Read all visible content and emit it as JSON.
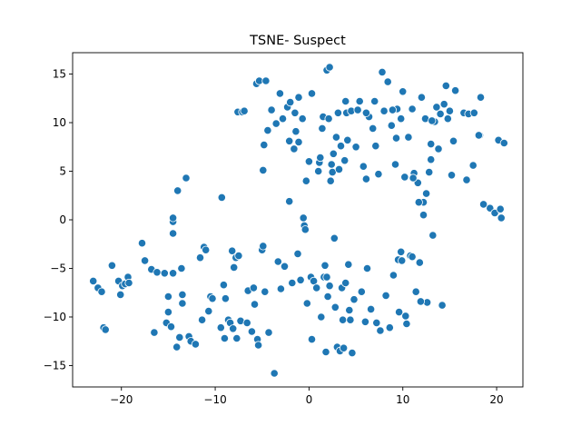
{
  "chart_data": {
    "type": "scatter",
    "title": "TSNE- Suspect",
    "xlabel": "",
    "ylabel": "",
    "xlim": [
      -25.2,
      22.8
    ],
    "ylim": [
      -17.2,
      17.2
    ],
    "xticks": [
      -20,
      -10,
      0,
      10,
      20
    ],
    "yticks": [
      -15,
      -10,
      -5,
      0,
      5,
      10,
      15
    ],
    "xtick_labels": [
      "−20",
      "−10",
      "0",
      "10",
      "20"
    ],
    "ytick_labels": [
      "−15",
      "−10",
      "−5",
      "0",
      "5",
      "10",
      "15"
    ],
    "color": "#1f77b4",
    "grid": false,
    "legend": "none",
    "points": [
      [
        -23.0,
        -6.3
      ],
      [
        -22.5,
        -7.0
      ],
      [
        -22.1,
        -7.4
      ],
      [
        -21.9,
        -11.1
      ],
      [
        -21.7,
        -11.3
      ],
      [
        -21.0,
        -4.7
      ],
      [
        -20.3,
        -6.3
      ],
      [
        -20.1,
        -7.7
      ],
      [
        -19.9,
        -6.8
      ],
      [
        -19.6,
        -6.6
      ],
      [
        -19.3,
        -5.9
      ],
      [
        -19.2,
        -6.5
      ],
      [
        -17.8,
        -2.4
      ],
      [
        -17.5,
        -4.2
      ],
      [
        -16.8,
        -5.1
      ],
      [
        -16.5,
        -11.6
      ],
      [
        -16.2,
        -5.4
      ],
      [
        -15.4,
        -5.5
      ],
      [
        -15.2,
        -10.6
      ],
      [
        -15.0,
        -7.9
      ],
      [
        -15.0,
        -9.5
      ],
      [
        -14.7,
        -11.0
      ],
      [
        -14.5,
        -0.2
      ],
      [
        -14.5,
        0.2
      ],
      [
        -14.5,
        -5.5
      ],
      [
        -14.5,
        -1.4
      ],
      [
        -14.1,
        -13.1
      ],
      [
        -14.0,
        3.0
      ],
      [
        -13.8,
        -12.1
      ],
      [
        -13.6,
        -5.0
      ],
      [
        -13.5,
        -7.7
      ],
      [
        -13.5,
        -8.6
      ],
      [
        -13.1,
        4.3
      ],
      [
        -12.8,
        -12.0
      ],
      [
        -12.6,
        -12.5
      ],
      [
        -12.1,
        -12.8
      ],
      [
        -11.6,
        -3.9
      ],
      [
        -11.4,
        -10.3
      ],
      [
        -11.2,
        -2.8
      ],
      [
        -11.0,
        -3.1
      ],
      [
        -10.7,
        -9.4
      ],
      [
        -10.5,
        -7.9
      ],
      [
        -10.3,
        -8.1
      ],
      [
        -9.4,
        -11.1
      ],
      [
        -9.3,
        2.3
      ],
      [
        -9.1,
        -6.7
      ],
      [
        -9.0,
        -12.2
      ],
      [
        -8.9,
        -8.1
      ],
      [
        -8.6,
        -10.3
      ],
      [
        -8.4,
        -10.6
      ],
      [
        -8.2,
        -3.2
      ],
      [
        -8.1,
        -11.2
      ],
      [
        -8.0,
        -4.9
      ],
      [
        -7.8,
        -3.9
      ],
      [
        -7.7,
        -12.2
      ],
      [
        -7.6,
        11.1
      ],
      [
        -7.5,
        -3.7
      ],
      [
        -7.3,
        -10.4
      ],
      [
        -7.1,
        11.1
      ],
      [
        -6.9,
        11.2
      ],
      [
        -6.6,
        -10.6
      ],
      [
        -6.5,
        -7.3
      ],
      [
        -6.1,
        -11.5
      ],
      [
        -5.9,
        -7.0
      ],
      [
        -5.8,
        -8.7
      ],
      [
        -5.6,
        14.0
      ],
      [
        -5.5,
        -12.3
      ],
      [
        -5.4,
        -12.9
      ],
      [
        -5.3,
        14.3
      ],
      [
        -5.0,
        -3.1
      ],
      [
        -4.9,
        -2.7
      ],
      [
        -4.7,
        -7.4
      ],
      [
        -4.6,
        14.3
      ],
      [
        -4.4,
        9.2
      ],
      [
        -4.3,
        -11.6
      ],
      [
        -4.0,
        11.3
      ],
      [
        -3.7,
        -15.8
      ],
      [
        -3.5,
        9.9
      ],
      [
        -3.3,
        -4.3
      ],
      [
        -3.1,
        13.0
      ],
      [
        -3.0,
        -7.1
      ],
      [
        -2.8,
        10.4
      ],
      [
        -2.6,
        -4.8
      ],
      [
        -2.3,
        11.6
      ],
      [
        -2.1,
        1.9
      ],
      [
        -2.0,
        12.1
      ],
      [
        -1.8,
        -6.5
      ],
      [
        -1.6,
        7.3
      ],
      [
        -1.5,
        11.0
      ],
      [
        -1.2,
        -3.5
      ],
      [
        -1.1,
        8.0
      ],
      [
        -0.9,
        -6.2
      ],
      [
        -0.7,
        10.4
      ],
      [
        -0.6,
        0.2
      ],
      [
        -0.5,
        -0.6
      ],
      [
        -0.4,
        -1.0
      ],
      [
        -0.3,
        4.0
      ],
      [
        -0.2,
        -8.6
      ],
      [
        0.0,
        6.0
      ],
      [
        0.2,
        -5.9
      ],
      [
        0.3,
        -12.3
      ],
      [
        0.5,
        -6.3
      ],
      [
        0.8,
        -7.0
      ],
      [
        1.0,
        5.0
      ],
      [
        1.1,
        5.9
      ],
      [
        1.2,
        6.4
      ],
      [
        1.3,
        -10.0
      ],
      [
        1.4,
        9.4
      ],
      [
        1.5,
        10.6
      ],
      [
        1.6,
        -5.9
      ],
      [
        1.7,
        -4.7
      ],
      [
        1.8,
        -13.6
      ],
      [
        1.9,
        -5.9
      ],
      [
        2.0,
        -7.9
      ],
      [
        2.1,
        10.4
      ],
      [
        2.2,
        -6.8
      ],
      [
        2.3,
        4.0
      ],
      [
        2.4,
        5.7
      ],
      [
        2.5,
        4.9
      ],
      [
        2.6,
        6.8
      ],
      [
        2.7,
        -1.9
      ],
      [
        2.8,
        -9.0
      ],
      [
        2.9,
        8.5
      ],
      [
        3.0,
        -13.1
      ],
      [
        3.1,
        11.0
      ],
      [
        3.2,
        5.2
      ],
      [
        3.3,
        -13.5
      ],
      [
        3.4,
        7.6
      ],
      [
        3.5,
        -7.0
      ],
      [
        3.6,
        -10.3
      ],
      [
        3.7,
        -13.2
      ],
      [
        3.8,
        6.1
      ],
      [
        3.9,
        -6.5
      ],
      [
        4.0,
        11.0
      ],
      [
        4.1,
        8.2
      ],
      [
        4.2,
        -4.6
      ],
      [
        4.3,
        -9.3
      ],
      [
        4.4,
        -10.3
      ],
      [
        4.5,
        11.2
      ],
      [
        4.6,
        -13.7
      ],
      [
        4.8,
        -8.2
      ],
      [
        5.0,
        7.5
      ],
      [
        5.2,
        11.3
      ],
      [
        5.4,
        12.2
      ],
      [
        5.6,
        -7.4
      ],
      [
        5.8,
        5.5
      ],
      [
        6.0,
        -10.5
      ],
      [
        6.1,
        4.2
      ],
      [
        6.2,
        -5.0
      ],
      [
        6.4,
        10.6
      ],
      [
        6.6,
        -9.2
      ],
      [
        6.8,
        9.4
      ],
      [
        7.0,
        12.2
      ],
      [
        7.2,
        -10.6
      ],
      [
        7.4,
        4.7
      ],
      [
        7.6,
        -11.4
      ],
      [
        7.8,
        15.2
      ],
      [
        8.0,
        11.2
      ],
      [
        8.2,
        -7.8
      ],
      [
        8.4,
        14.2
      ],
      [
        8.6,
        -11.1
      ],
      [
        8.8,
        9.7
      ],
      [
        9.0,
        -5.7
      ],
      [
        9.2,
        5.7
      ],
      [
        9.4,
        11.4
      ],
      [
        9.6,
        -9.5
      ],
      [
        9.8,
        -3.3
      ],
      [
        10.0,
        13.2
      ],
      [
        10.2,
        4.4
      ],
      [
        10.4,
        -10.7
      ],
      [
        10.6,
        8.5
      ],
      [
        10.8,
        -3.7
      ],
      [
        11.0,
        11.4
      ],
      [
        11.2,
        4.8
      ],
      [
        11.4,
        -7.4
      ],
      [
        11.6,
        3.8
      ],
      [
        11.8,
        -4.4
      ],
      [
        12.0,
        12.6
      ],
      [
        12.2,
        1.8
      ],
      [
        12.4,
        10.4
      ],
      [
        12.6,
        -8.5
      ],
      [
        12.8,
        4.9
      ],
      [
        13.0,
        7.8
      ],
      [
        13.2,
        -1.6
      ],
      [
        13.4,
        10.1
      ],
      [
        13.6,
        11.6
      ],
      [
        13.8,
        7.3
      ],
      [
        14.0,
        10.9
      ],
      [
        14.2,
        -8.8
      ],
      [
        14.4,
        11.9
      ],
      [
        14.6,
        13.8
      ],
      [
        14.8,
        10.4
      ],
      [
        15.0,
        11.2
      ],
      [
        15.2,
        4.6
      ],
      [
        15.4,
        8.1
      ],
      [
        15.6,
        13.3
      ],
      [
        16.5,
        11.0
      ],
      [
        17.0,
        10.9
      ],
      [
        17.5,
        5.6
      ],
      [
        18.2,
        8.7
      ],
      [
        18.3,
        12.6
      ],
      [
        18.6,
        1.6
      ],
      [
        19.3,
        1.2
      ],
      [
        19.8,
        0.7
      ],
      [
        20.2,
        8.2
      ],
      [
        20.4,
        1.1
      ],
      [
        20.5,
        0.2
      ],
      [
        20.8,
        7.9
      ],
      [
        -4.9,
        5.1
      ],
      [
        -4.8,
        7.7
      ],
      [
        -2.1,
        8.1
      ],
      [
        -1.4,
        9.1
      ],
      [
        0.3,
        13.0
      ],
      [
        1.9,
        15.4
      ],
      [
        2.2,
        15.7
      ],
      [
        -1.1,
        12.6
      ],
      [
        3.9,
        12.2
      ],
      [
        6.1,
        11.0
      ],
      [
        8.9,
        11.3
      ],
      [
        9.3,
        8.4
      ],
      [
        11.1,
        4.3
      ],
      [
        12.2,
        0.5
      ],
      [
        12.5,
        2.7
      ],
      [
        11.7,
        1.8
      ],
      [
        11.9,
        -8.4
      ],
      [
        10.3,
        -9.9
      ],
      [
        9.5,
        -4.1
      ],
      [
        9.9,
        -4.2
      ],
      [
        11.0,
        -3.8
      ],
      [
        13.0,
        6.2
      ],
      [
        13.1,
        10.2
      ],
      [
        17.6,
        11.0
      ],
      [
        18.1,
        8.7
      ],
      [
        16.8,
        4.1
      ],
      [
        9.8,
        10.4
      ],
      [
        7.1,
        7.6
      ]
    ]
  }
}
